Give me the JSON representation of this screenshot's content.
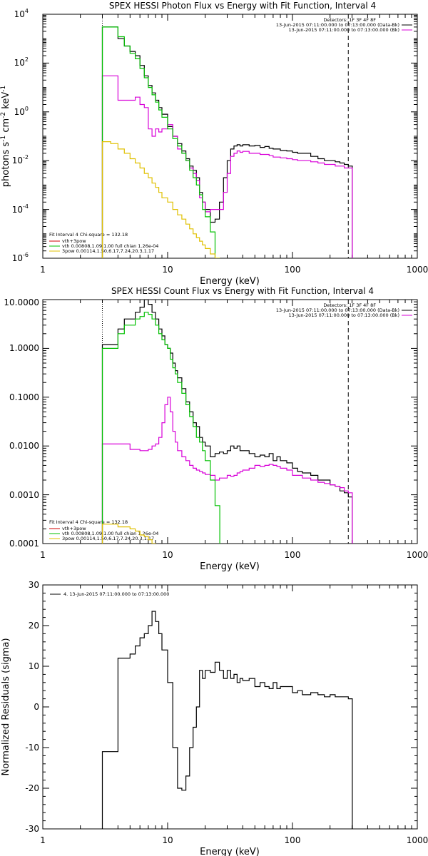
{
  "chart_data": [
    {
      "type": "line",
      "title": "SPEX HESSI Photon Flux vs Energy with Fit Function, Interval 4",
      "xlabel": "Energy (keV)",
      "ylabel_base": "photons s",
      "ylabel_sup1": "-1",
      "ylabel_mid": " cm",
      "ylabel_sup2": "-2",
      "ylabel_end": " keV",
      "ylabel_sup3": "-1",
      "xscale": "log",
      "yscale": "log",
      "xlim": [
        1,
        1000
      ],
      "ylim": [
        1e-06,
        10000.0
      ],
      "x_ticks": [
        "1",
        "10",
        "100",
        "1000"
      ],
      "y_tick_values": [
        1e-06,
        0.0001,
        0.01,
        1,
        100,
        10000
      ],
      "y_tick_base": [
        "10",
        "10",
        "10",
        "10",
        "10",
        "10"
      ],
      "y_tick_exp": [
        "-6",
        "-4",
        "-2",
        "0",
        "2",
        "4"
      ],
      "vlines": [
        {
          "x": 3,
          "style": "dotted",
          "color": "#000000"
        },
        {
          "x": 280,
          "style": "dashed",
          "color": "#000000"
        }
      ],
      "legend_right": {
        "header": "Detectors: 1F 3F 4F 8F",
        "entries": [
          {
            "text": "13-Jun-2015 07:11:00.000 to 07:13:00.000 (Data-Bk)",
            "color": "#000000"
          },
          {
            "text": "13-Jun-2015 07:11:00.000 to 07:13:00.000 (Bk)",
            "color": "#d800d8"
          }
        ]
      },
      "legend_left": {
        "header": "Fit Interval  4    Chi-square = 132.18",
        "entries": [
          {
            "text": "vth+3pow",
            "color": "#d00000"
          },
          {
            "text": "vth 0.00808,1.09,1.00  full chian 1.26e-04",
            "color": "#00c000"
          },
          {
            "text": "3pow 0.00114,1.50,6.17,7.24,20.3,1.17",
            "color": "#e0c000"
          }
        ]
      },
      "series": [
        {
          "color": "#000000",
          "x": [
            3,
            3.5,
            4,
            4.5,
            5,
            5.5,
            6,
            6.5,
            7,
            7.5,
            8,
            8.5,
            9,
            10,
            11,
            12,
            13,
            14,
            15,
            16,
            17,
            18,
            19,
            20,
            22,
            24,
            26,
            28,
            30,
            32,
            34,
            36,
            38,
            40,
            45,
            50,
            55,
            60,
            65,
            70,
            75,
            80,
            90,
            100,
            110,
            120,
            140,
            160,
            180,
            200,
            220,
            240,
            260,
            280
          ],
          "y": [
            3000,
            3000,
            1000,
            500,
            300,
            200,
            80,
            30,
            12,
            6,
            3,
            1.5,
            0.8,
            0.25,
            0.1,
            0.05,
            0.025,
            0.012,
            0.006,
            0.004,
            0.002,
            0.0005,
            0.0002,
            0.0001,
            3e-05,
            4e-05,
            0.0002,
            0.002,
            0.01,
            0.03,
            0.04,
            0.045,
            0.04,
            0.045,
            0.04,
            0.042,
            0.035,
            0.038,
            0.032,
            0.03,
            0.03,
            0.026,
            0.025,
            0.022,
            0.02,
            0.02,
            0.015,
            0.012,
            0.01,
            0.01,
            0.009,
            0.008,
            0.007,
            0.006
          ]
        },
        {
          "color": "#d800d8",
          "x": [
            3,
            3.5,
            4,
            4.5,
            5,
            5.5,
            6,
            6.5,
            7,
            7.5,
            8,
            8.5,
            9,
            10,
            11,
            12,
            13,
            14,
            15,
            16,
            17,
            18,
            19,
            20,
            22,
            24,
            26,
            28,
            30,
            32,
            34,
            36,
            38,
            40,
            45,
            50,
            55,
            60,
            65,
            70,
            75,
            80,
            90,
            100,
            110,
            120,
            140,
            160,
            180,
            200,
            220,
            240,
            260,
            280
          ],
          "y": [
            30,
            30,
            3,
            3,
            3,
            4,
            2,
            1.5,
            0.2,
            0.1,
            0.2,
            0.15,
            0.2,
            0.3,
            0.1,
            0.03,
            0.02,
            0.01,
            0.005,
            0.003,
            0.0015,
            0.0003,
            0.0002,
            8e-05,
            0.0001,
            0.0001,
            0.0001,
            0.0005,
            0.003,
            0.015,
            0.02,
            0.025,
            0.022,
            0.024,
            0.02,
            0.02,
            0.018,
            0.018,
            0.016,
            0.014,
            0.014,
            0.013,
            0.012,
            0.011,
            0.01,
            0.01,
            0.009,
            0.008,
            0.007,
            0.007,
            0.006,
            0.006,
            0.005,
            0.005
          ]
        },
        {
          "color": "#00c000",
          "x": [
            3,
            3.5,
            4,
            4.5,
            5,
            5.5,
            6,
            6.5,
            7,
            7.5,
            8,
            8.5,
            9,
            10,
            11,
            12,
            13,
            14,
            15,
            16,
            17,
            18,
            19,
            20,
            22,
            24
          ],
          "y": [
            3000,
            3000,
            1200,
            500,
            250,
            150,
            60,
            25,
            10,
            5,
            2.5,
            1.2,
            0.6,
            0.2,
            0.08,
            0.04,
            0.02,
            0.01,
            0.004,
            0.002,
            0.001,
            0.0004,
            0.0001,
            5e-05,
            1.2e-05,
            1e-06
          ]
        },
        {
          "color": "#e0c000",
          "x": [
            3,
            3.5,
            4,
            4.5,
            5,
            5.5,
            6,
            6.5,
            7,
            7.5,
            8,
            8.5,
            9,
            10,
            11,
            12,
            13,
            14,
            15,
            16,
            17,
            18,
            19,
            20,
            22,
            24,
            26,
            28
          ],
          "y": [
            0.06,
            0.05,
            0.03,
            0.02,
            0.012,
            0.008,
            0.005,
            0.003,
            0.002,
            0.0012,
            0.0008,
            0.0005,
            0.0003,
            0.0002,
            0.0001,
            6e-05,
            4e-05,
            2.5e-05,
            1.6e-05,
            1e-05,
            7e-06,
            5e-06,
            3.5e-06,
            2.5e-06,
            1.5e-06,
            1e-06,
            8e-07,
            6e-07
          ]
        }
      ]
    },
    {
      "type": "line",
      "title": "SPEX HESSI Count Flux vs Energy with Fit Function, Interval 4",
      "xlabel": "Energy (keV)",
      "xscale": "log",
      "yscale": "log",
      "xlim": [
        1,
        1000
      ],
      "ylim": [
        0.0001,
        10
      ],
      "x_ticks": [
        "1",
        "10",
        "100",
        "1000"
      ],
      "y_tick_values": [
        0.0001,
        0.001,
        0.01,
        0.1,
        1,
        10
      ],
      "y_ticks": [
        "0.0001",
        "0.0010",
        "0.0100",
        "0.1000",
        "1.0000",
        "10.0000"
      ],
      "vlines": [
        {
          "x": 3,
          "style": "dotted",
          "color": "#000000"
        },
        {
          "x": 280,
          "style": "dashed",
          "color": "#000000"
        }
      ],
      "legend_right": {
        "header": "Detectors: 1F 3F 4F 8F",
        "entries": [
          {
            "text": "13-Jun-2015 07:11:00.000 to 07:13:00.000 (Data-Bk)",
            "color": "#000000"
          },
          {
            "text": "13-Jun-2015 07:11:00.000 to 07:13:00.000 (Bk)",
            "color": "#d800d8"
          }
        ]
      },
      "legend_left": {
        "header": "Fit Interval  4    Chi-square = 132.18",
        "entries": [
          {
            "text": "vth+3pow",
            "color": "#d00000"
          },
          {
            "text": "vth 0.00808,1.09,1.00  full chian 1.26e-04",
            "color": "#00c000"
          },
          {
            "text": "3pow 0.00114,1.50,6.17,7.24,20.3,1.17",
            "color": "#e0c000"
          }
        ]
      },
      "series": [
        {
          "color": "#000000",
          "x": [
            3,
            3.5,
            4,
            4.5,
            5,
            5.5,
            6,
            6.5,
            7,
            7.5,
            8,
            8.5,
            9,
            9.5,
            10,
            10.5,
            11,
            11.5,
            12,
            13,
            14,
            15,
            16,
            17,
            18,
            19,
            20,
            22,
            24,
            26,
            28,
            30,
            32,
            34,
            36,
            38,
            40,
            45,
            50,
            55,
            60,
            65,
            70,
            75,
            80,
            90,
            100,
            110,
            120,
            140,
            160,
            180,
            200,
            220,
            240,
            260,
            280
          ],
          "y": [
            1.2,
            1.2,
            2.5,
            4,
            4,
            5.5,
            7,
            10,
            8,
            5.5,
            4,
            2.5,
            1.8,
            1.2,
            1,
            0.8,
            0.5,
            0.35,
            0.25,
            0.15,
            0.08,
            0.05,
            0.03,
            0.025,
            0.015,
            0.012,
            0.01,
            0.006,
            0.007,
            0.0075,
            0.007,
            0.008,
            0.01,
            0.009,
            0.01,
            0.008,
            0.008,
            0.007,
            0.006,
            0.0065,
            0.006,
            0.007,
            0.005,
            0.006,
            0.005,
            0.0045,
            0.0035,
            0.003,
            0.0028,
            0.0025,
            0.002,
            0.002,
            0.0016,
            0.0015,
            0.0012,
            0.0011,
            0.0009
          ]
        },
        {
          "color": "#d800d8",
          "x": [
            3,
            5,
            6,
            7,
            7.5,
            8,
            8.5,
            9,
            9.5,
            10,
            10.5,
            11,
            11.5,
            12,
            13,
            14,
            15,
            16,
            17,
            18,
            19,
            20,
            22,
            24,
            26,
            28,
            30,
            32,
            34,
            36,
            38,
            40,
            45,
            50,
            55,
            60,
            65,
            70,
            75,
            80,
            90,
            100,
            110,
            120,
            140,
            160,
            180,
            200,
            220,
            240,
            260,
            280
          ],
          "y": [
            0.011,
            0.0085,
            0.008,
            0.0085,
            0.01,
            0.011,
            0.015,
            0.03,
            0.07,
            0.1,
            0.05,
            0.02,
            0.012,
            0.008,
            0.006,
            0.005,
            0.004,
            0.0035,
            0.0032,
            0.003,
            0.0028,
            0.0026,
            0.0025,
            0.002,
            0.0022,
            0.0022,
            0.0025,
            0.0024,
            0.0025,
            0.0028,
            0.003,
            0.0032,
            0.0035,
            0.004,
            0.0038,
            0.004,
            0.0042,
            0.004,
            0.0038,
            0.0035,
            0.0032,
            0.0025,
            0.0025,
            0.0022,
            0.002,
            0.0018,
            0.0017,
            0.0016,
            0.0015,
            0.0014,
            0.0012,
            0.0011
          ]
        },
        {
          "color": "#00c000",
          "x": [
            3,
            3.5,
            4,
            4.5,
            5,
            5.5,
            6,
            6.5,
            7,
            7.5,
            8,
            8.5,
            9,
            9.5,
            10,
            10.5,
            11,
            11.5,
            12,
            13,
            14,
            15,
            16,
            17,
            18,
            19,
            20,
            22,
            24
          ],
          "y": [
            1,
            1,
            2,
            3,
            3,
            4,
            4.5,
            5.5,
            5,
            4,
            3,
            2,
            1.5,
            1.2,
            1,
            0.6,
            0.4,
            0.3,
            0.2,
            0.12,
            0.07,
            0.04,
            0.025,
            0.015,
            0.012,
            0.008,
            0.005,
            0.002,
            0.0006
          ]
        },
        {
          "color": "#e0c000",
          "x": [
            3,
            3.5,
            4,
            4.5,
            5,
            5.5,
            6,
            6.5,
            7,
            7.5,
            8
          ],
          "y": [
            0.00025,
            0.00025,
            0.00022,
            0.00022,
            0.0002,
            0.00018,
            0.00015,
            0.00014,
            0.00012,
            0.0001,
            9e-05
          ]
        }
      ]
    },
    {
      "type": "line",
      "ylabel": "Normalized Residuals (sigma)",
      "xlabel": "Energy (keV)",
      "xscale": "log",
      "yscale": "linear",
      "xlim": [
        1,
        1000
      ],
      "ylim": [
        -30,
        30
      ],
      "x_ticks": [
        "1",
        "10",
        "100",
        "1000"
      ],
      "y_tick_values": [
        -30,
        -20,
        -10,
        0,
        10,
        20,
        30
      ],
      "y_ticks": [
        "-30",
        "-20",
        "-10",
        "0",
        "10",
        "20",
        "30"
      ],
      "legend": "4. 13-Jun-2015 07:11:00.000 to 07:13:00.000",
      "series": [
        {
          "color": "#000000",
          "x": [
            3,
            3.5,
            4,
            4.5,
            5,
            5.5,
            6,
            6.5,
            7,
            7.5,
            8,
            8.5,
            9,
            10,
            11,
            12,
            13,
            14,
            15,
            16,
            17,
            18,
            19,
            20,
            22,
            24,
            26,
            28,
            30,
            32,
            34,
            36,
            38,
            40,
            45,
            50,
            55,
            60,
            65,
            70,
            75,
            80,
            90,
            100,
            110,
            120,
            140,
            160,
            180,
            200,
            220,
            240,
            260,
            280
          ],
          "y": [
            -11,
            -11,
            12,
            12,
            13,
            15,
            17,
            18,
            20,
            23.5,
            21,
            18,
            14,
            6,
            -10,
            -20,
            -20.5,
            -17,
            -10,
            -5,
            0,
            9,
            7,
            9,
            8.5,
            11,
            9,
            7,
            9,
            7,
            8,
            6,
            7,
            6.5,
            7,
            5,
            6,
            5,
            4.5,
            6,
            4.5,
            5,
            5,
            3.5,
            4,
            3,
            3.5,
            3,
            2.5,
            3,
            2.5,
            2.5,
            2.5,
            2
          ]
        }
      ]
    }
  ]
}
